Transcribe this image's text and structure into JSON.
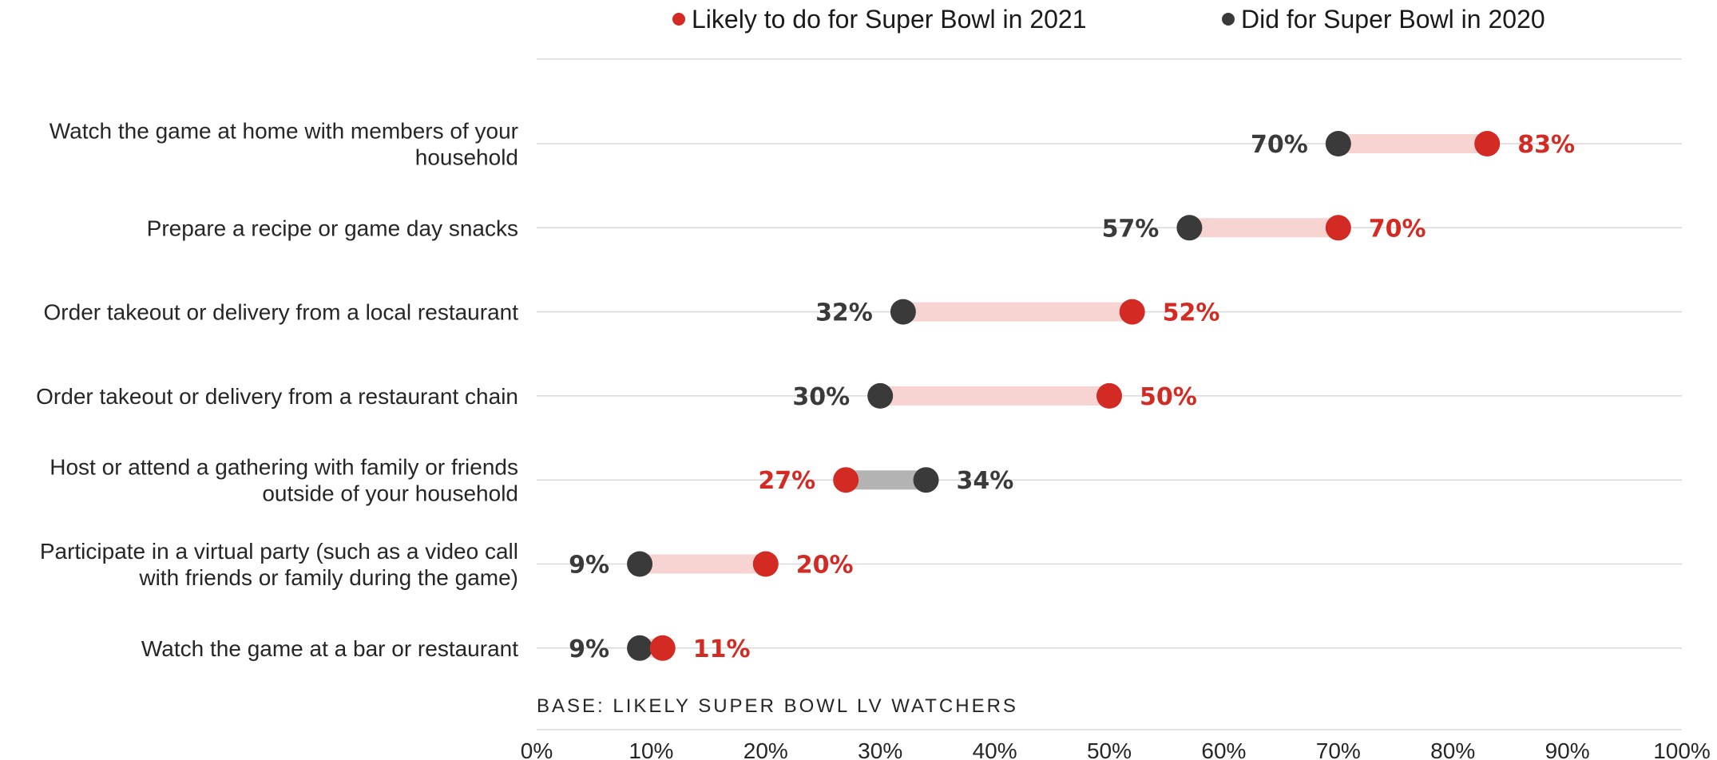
{
  "chart_data": {
    "type": "dumbbell",
    "legend": [
      {
        "name": "Likely to do for Super Bowl in 2021",
        "color": "#d42a24"
      },
      {
        "name": "Did for Super Bowl in 2020",
        "color": "#3a3a3a"
      }
    ],
    "legend_position": "top",
    "categories": [
      [
        "Watch the game at home with members of your",
        "household"
      ],
      [
        "Prepare a recipe or game day snacks"
      ],
      [
        "Order takeout or delivery from a local restaurant"
      ],
      [
        "Order takeout or delivery from a restaurant chain"
      ],
      [
        "Host or attend a gathering with family or friends",
        "outside of your household"
      ],
      [
        "Participate in a virtual party (such as a video call",
        "with friends or family during the game)"
      ],
      [
        "Watch the game at a bar or restaurant"
      ]
    ],
    "series": [
      {
        "name": "Likely to do for Super Bowl in 2021",
        "values": [
          83,
          70,
          52,
          50,
          27,
          20,
          11
        ]
      },
      {
        "name": "Did for Super Bowl in 2020",
        "values": [
          70,
          57,
          32,
          30,
          34,
          9,
          9
        ]
      }
    ],
    "value_labels": {
      "2021": [
        "83%",
        "70%",
        "52%",
        "50%",
        "27%",
        "20%",
        "11%"
      ],
      "2020": [
        "70%",
        "57%",
        "32%",
        "30%",
        "34%",
        "9%",
        "9%"
      ]
    },
    "x_ticks": [
      "0%",
      "10%",
      "20%",
      "30%",
      "40%",
      "50%",
      "60%",
      "70%",
      "80%",
      "90%",
      "100%"
    ],
    "xlim": [
      0,
      100
    ],
    "grid": true,
    "colors": {
      "red": "#d42a24",
      "dark": "#3a3a3a",
      "increase_bar": "#f7d3d2",
      "decrease_bar": "#b3b3b3",
      "grid": "#d9d9d9"
    },
    "base_note": "BASE: LIKELY SUPER BOWL LV WATCHERS"
  }
}
